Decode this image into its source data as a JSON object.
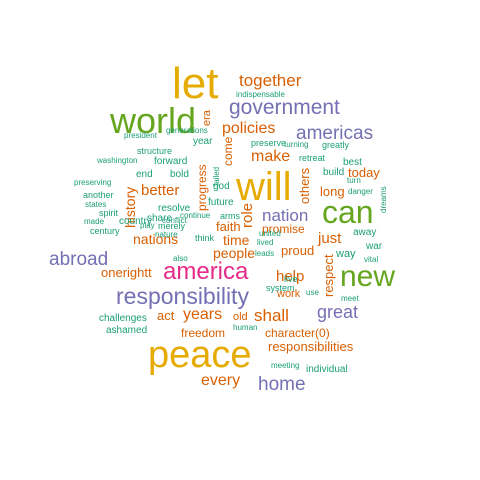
{
  "palette": {
    "green": "#1b9e77",
    "orange": "#d95f02",
    "purple": "#7570b3",
    "magenta": "#e7298a",
    "lime": "#66a61e",
    "gold": "#e6ab02"
  },
  "words": [
    {
      "text": "let",
      "color": "gold"
    },
    {
      "text": "world",
      "color": "lime"
    },
    {
      "text": "will",
      "color": "gold"
    },
    {
      "text": "can",
      "color": "lime"
    },
    {
      "text": "new",
      "color": "lime"
    },
    {
      "text": "america",
      "color": "magenta"
    },
    {
      "text": "peace",
      "color": "gold"
    },
    {
      "text": "responsibility",
      "color": "purple"
    },
    {
      "text": "government",
      "color": "purple"
    },
    {
      "text": "americas",
      "color": "purple"
    },
    {
      "text": "together",
      "color": "orange"
    },
    {
      "text": "policies",
      "color": "orange"
    },
    {
      "text": "make",
      "color": "orange"
    },
    {
      "text": "nation",
      "color": "purple"
    },
    {
      "text": "great",
      "color": "purple"
    },
    {
      "text": "abroad",
      "color": "purple"
    },
    {
      "text": "home",
      "color": "purple"
    },
    {
      "text": "nations",
      "color": "orange"
    },
    {
      "text": "better",
      "color": "orange"
    },
    {
      "text": "people",
      "color": "orange"
    },
    {
      "text": "time",
      "color": "orange"
    },
    {
      "text": "just",
      "color": "orange"
    },
    {
      "text": "help",
      "color": "orange"
    },
    {
      "text": "years",
      "color": "orange"
    },
    {
      "text": "shall",
      "color": "orange"
    },
    {
      "text": "every",
      "color": "orange"
    },
    {
      "text": "history",
      "color": "orange"
    },
    {
      "text": "role",
      "color": "orange"
    },
    {
      "text": "others",
      "color": "orange"
    },
    {
      "text": "progress",
      "color": "orange"
    },
    {
      "text": "respect",
      "color": "orange"
    },
    {
      "text": "today",
      "color": "orange"
    },
    {
      "text": "long",
      "color": "orange"
    },
    {
      "text": "faith",
      "color": "orange"
    },
    {
      "text": "proud",
      "color": "orange"
    },
    {
      "text": "act",
      "color": "orange"
    },
    {
      "text": "onerightt",
      "color": "orange"
    },
    {
      "text": "responsibilities",
      "color": "orange"
    },
    {
      "text": "character(0)",
      "color": "orange"
    },
    {
      "text": "promise",
      "color": "orange"
    },
    {
      "text": "come",
      "color": "orange"
    },
    {
      "text": "era",
      "color": "orange"
    },
    {
      "text": "work",
      "color": "orange"
    },
    {
      "text": "freedom",
      "color": "orange"
    },
    {
      "text": "old",
      "color": "orange"
    },
    {
      "text": "indispensable",
      "color": "green"
    },
    {
      "text": "president",
      "color": "green"
    },
    {
      "text": "generations",
      "color": "green"
    },
    {
      "text": "year",
      "color": "green"
    },
    {
      "text": "preserve",
      "color": "green"
    },
    {
      "text": "greatly",
      "color": "green"
    },
    {
      "text": "structure",
      "color": "green"
    },
    {
      "text": "washington",
      "color": "green"
    },
    {
      "text": "forward",
      "color": "green"
    },
    {
      "text": "end",
      "color": "green"
    },
    {
      "text": "bold",
      "color": "green"
    },
    {
      "text": "preserving",
      "color": "green"
    },
    {
      "text": "another",
      "color": "green"
    },
    {
      "text": "states",
      "color": "green"
    },
    {
      "text": "made",
      "color": "green"
    },
    {
      "text": "spirit",
      "color": "green"
    },
    {
      "text": "century",
      "color": "green"
    },
    {
      "text": "play",
      "color": "green"
    },
    {
      "text": "country",
      "color": "green"
    },
    {
      "text": "merely",
      "color": "green"
    },
    {
      "text": "share",
      "color": "green"
    },
    {
      "text": "resolve",
      "color": "green"
    },
    {
      "text": "conflict",
      "color": "green"
    },
    {
      "text": "nature",
      "color": "green"
    },
    {
      "text": "also",
      "color": "green"
    },
    {
      "text": "think",
      "color": "green"
    },
    {
      "text": "continue",
      "color": "green"
    },
    {
      "text": "arms",
      "color": "green"
    },
    {
      "text": "god",
      "color": "green"
    },
    {
      "text": "future",
      "color": "green"
    },
    {
      "text": "failed",
      "color": "green"
    },
    {
      "text": "turning",
      "color": "green"
    },
    {
      "text": "retreat",
      "color": "green"
    },
    {
      "text": "build",
      "color": "green"
    },
    {
      "text": "best",
      "color": "green"
    },
    {
      "text": "turn",
      "color": "green"
    },
    {
      "text": "danger",
      "color": "green"
    },
    {
      "text": "dreams",
      "color": "green"
    },
    {
      "text": "away",
      "color": "green"
    },
    {
      "text": "war",
      "color": "green"
    },
    {
      "text": "vital",
      "color": "green"
    },
    {
      "text": "way",
      "color": "green"
    },
    {
      "text": "lived",
      "color": "green"
    },
    {
      "text": "leads",
      "color": "green"
    },
    {
      "text": "united",
      "color": "green"
    },
    {
      "text": "system",
      "color": "green"
    },
    {
      "text": "live",
      "color": "green"
    },
    {
      "text": "use",
      "color": "green"
    },
    {
      "text": "meet",
      "color": "green"
    },
    {
      "text": "challenges",
      "color": "green"
    },
    {
      "text": "ashamed",
      "color": "green"
    },
    {
      "text": "human",
      "color": "green"
    },
    {
      "text": "meeting",
      "color": "green"
    },
    {
      "text": "individual",
      "color": "green"
    }
  ]
}
